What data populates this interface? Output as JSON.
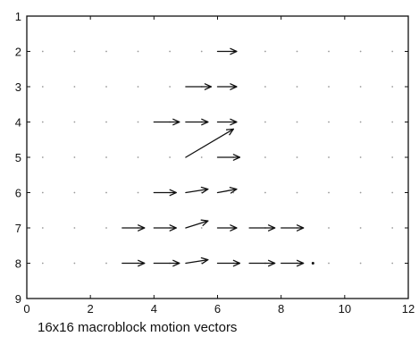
{
  "caption": "16x16 macroblock motion vectors",
  "chart_data": {
    "type": "quiver",
    "title": "",
    "xlabel": "",
    "ylabel": "",
    "xlim": [
      0,
      12
    ],
    "ylim": [
      9,
      1
    ],
    "y_axis_inverted": true,
    "x_ticks": [
      0,
      2,
      4,
      6,
      8,
      10,
      12
    ],
    "y_ticks": [
      1,
      2,
      3,
      4,
      5,
      6,
      7,
      8,
      9
    ],
    "grid": "dotted",
    "grid_points_x": [
      0.5,
      1.5,
      2.5,
      3.5,
      4.5,
      5.5,
      6.5,
      7.5,
      8.5,
      9.5,
      10.5,
      11.5
    ],
    "grid_points_y": [
      2,
      3,
      4,
      5,
      6,
      7,
      8
    ],
    "vectors": [
      {
        "x": 6.0,
        "y": 2,
        "u": 0.6,
        "v": 0.0
      },
      {
        "x": 5.0,
        "y": 3,
        "u": 0.8,
        "v": 0.0
      },
      {
        "x": 6.0,
        "y": 3,
        "u": 0.6,
        "v": 0.0
      },
      {
        "x": 4.0,
        "y": 4,
        "u": 0.8,
        "v": 0.0
      },
      {
        "x": 5.0,
        "y": 4,
        "u": 0.7,
        "v": 0.0
      },
      {
        "x": 6.0,
        "y": 4,
        "u": 0.6,
        "v": 0.0
      },
      {
        "x": 5.0,
        "y": 5,
        "u": 1.5,
        "v": -0.8
      },
      {
        "x": 6.0,
        "y": 5,
        "u": 0.7,
        "v": 0.0
      },
      {
        "x": 4.0,
        "y": 6,
        "u": 0.7,
        "v": 0.0
      },
      {
        "x": 5.0,
        "y": 6,
        "u": 0.7,
        "v": -0.1
      },
      {
        "x": 6.0,
        "y": 6,
        "u": 0.6,
        "v": -0.1
      },
      {
        "x": 3.0,
        "y": 7,
        "u": 0.7,
        "v": 0.0
      },
      {
        "x": 4.0,
        "y": 7,
        "u": 0.7,
        "v": 0.0
      },
      {
        "x": 5.0,
        "y": 7,
        "u": 0.7,
        "v": -0.2
      },
      {
        "x": 6.0,
        "y": 7,
        "u": 0.6,
        "v": 0.0
      },
      {
        "x": 7.0,
        "y": 7,
        "u": 0.8,
        "v": 0.0
      },
      {
        "x": 8.0,
        "y": 7,
        "u": 0.7,
        "v": 0.0
      },
      {
        "x": 3.0,
        "y": 8,
        "u": 0.7,
        "v": 0.0
      },
      {
        "x": 4.0,
        "y": 8,
        "u": 0.8,
        "v": 0.0
      },
      {
        "x": 5.0,
        "y": 8,
        "u": 0.7,
        "v": -0.1
      },
      {
        "x": 6.0,
        "y": 8,
        "u": 0.7,
        "v": 0.0
      },
      {
        "x": 7.0,
        "y": 8,
        "u": 0.8,
        "v": 0.0
      },
      {
        "x": 8.0,
        "y": 8,
        "u": 0.7,
        "v": 0.0
      },
      {
        "x": 9.0,
        "y": 8,
        "u": 0.1,
        "v": 0.0
      }
    ]
  }
}
